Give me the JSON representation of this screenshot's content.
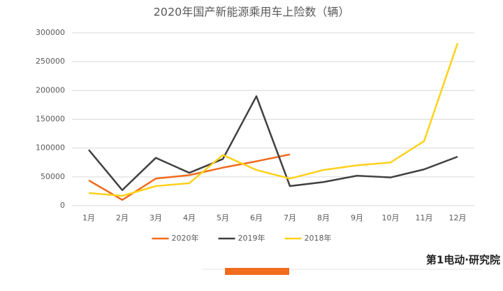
{
  "chart_data": {
    "type": "line",
    "title": "2020年国产新能源乘用车上险数（辆）",
    "categories": [
      "1月",
      "2月",
      "3月",
      "4月",
      "5月",
      "6月",
      "7月",
      "8月",
      "9月",
      "10月",
      "11月",
      "12月"
    ],
    "series": [
      {
        "name": "2020年",
        "color": "#f26b1d",
        "values": [
          44000,
          10000,
          47000,
          53000,
          66000,
          77000,
          89000,
          null,
          null,
          null,
          null,
          null
        ]
      },
      {
        "name": "2019年",
        "color": "#404040",
        "values": [
          97000,
          27000,
          83000,
          57000,
          81000,
          190000,
          34000,
          41000,
          52000,
          49000,
          63000,
          85000
        ]
      },
      {
        "name": "2018年",
        "color": "#ffd11a",
        "values": [
          22000,
          17000,
          34000,
          39000,
          88000,
          62000,
          47000,
          62000,
          70000,
          75000,
          112000,
          282000
        ]
      }
    ],
    "ylim": [
      0,
      300000
    ],
    "yticks": [
      0,
      50000,
      100000,
      150000,
      200000,
      250000,
      300000
    ],
    "grid": true,
    "legend": "bottom"
  },
  "brand": "第1电动·研究院"
}
